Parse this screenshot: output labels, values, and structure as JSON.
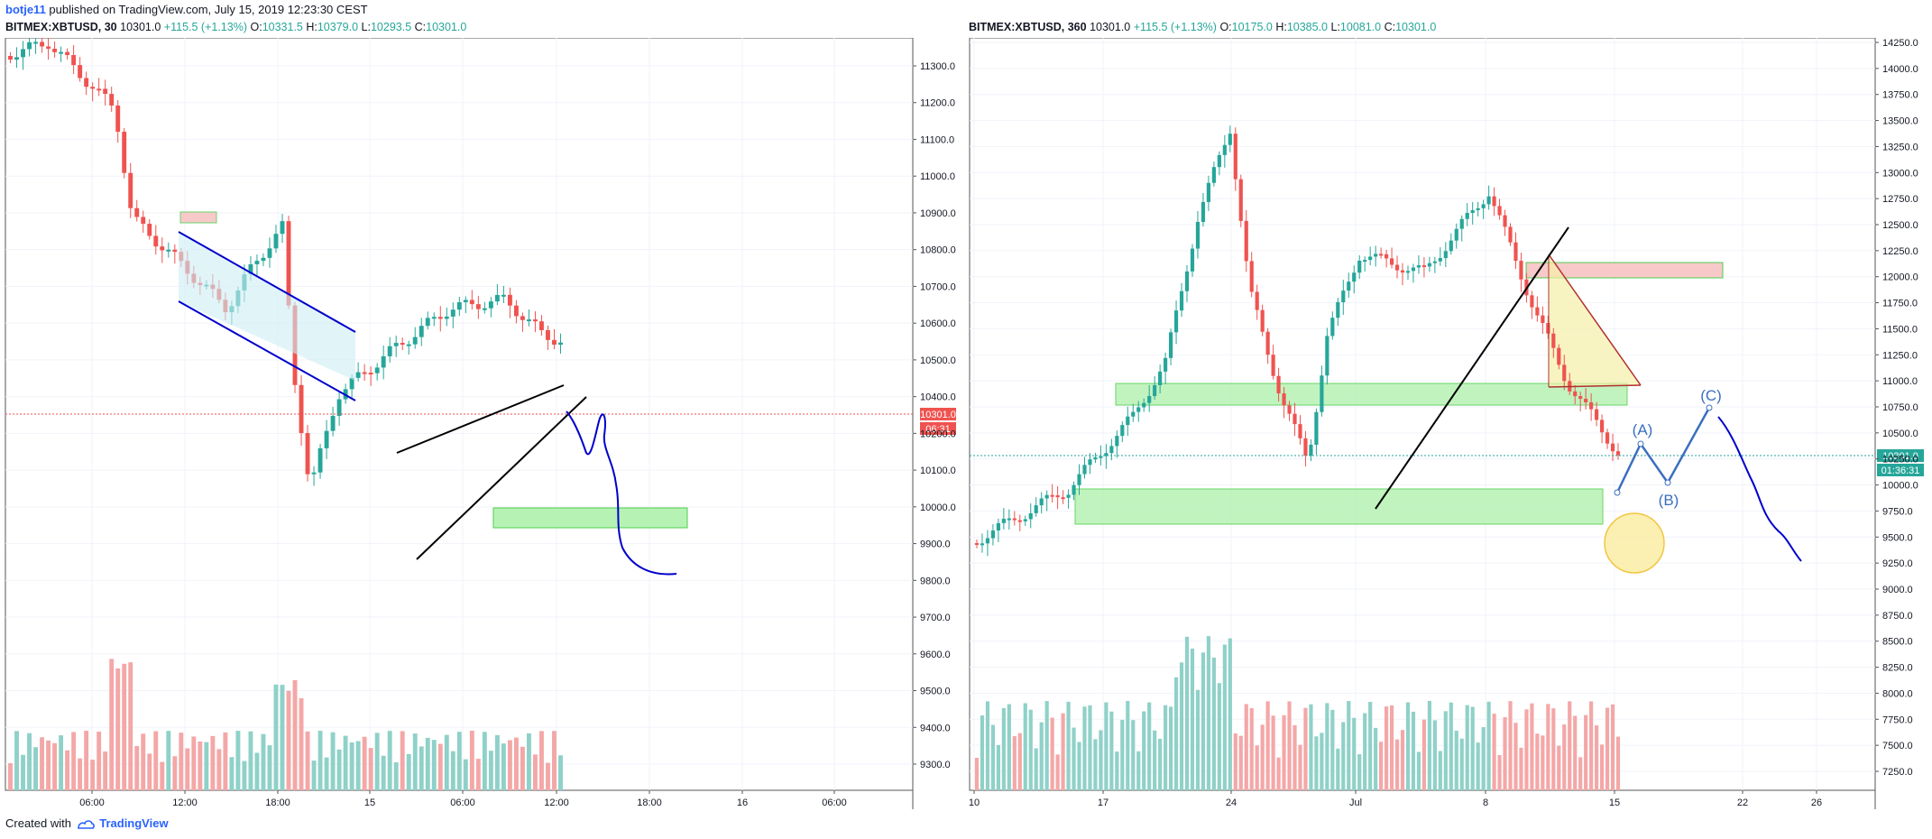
{
  "header": {
    "author": "botje11",
    "published_text": "published on TradingView.com, July 15, 2019 12:23:30 CEST"
  },
  "footer": {
    "created_with": "Created with",
    "brand": "TradingView"
  },
  "colors": {
    "up": "#26a69a",
    "down": "#ef5350",
    "up_volume": "#8fd1c8",
    "down_volume": "#f4a7a7",
    "drawing_blue": "#0000cc",
    "zone_green": "#b7f2b5",
    "zone_red": "#f7c9c9",
    "price_tag": "#ef5350",
    "price_tag_right": "#26a69a"
  },
  "left_chart": {
    "symbol": "BITMEX:XBTUSD, 30",
    "last": "10301.0",
    "change": "+115.5 (+1.13%)",
    "o_label": "O:",
    "o": "10331.5",
    "h_label": "H:",
    "h": "10379.0",
    "l_label": "L:",
    "l": "10293.5",
    "c_label": "C:",
    "c": "10301.0",
    "price_axis": [
      "11300.0",
      "11200.0",
      "11100.0",
      "11000.0",
      "10900.0",
      "10800.0",
      "10700.0",
      "10600.0",
      "10500.0",
      "10400.0",
      "10200.0",
      "10100.0",
      "10000.0",
      "9900.0",
      "9800.0",
      "9700.0",
      "9600.0",
      "9500.0",
      "9400.0",
      "9300.0"
    ],
    "time_axis": [
      "06:00",
      "12:00",
      "18:00",
      "15",
      "06:00",
      "12:00",
      "18:00",
      "16",
      "06:00"
    ],
    "price_tag": "10301.0",
    "countdown": "06:31"
  },
  "right_chart": {
    "symbol": "BITMEX:XBTUSD, 360",
    "last": "10301.0",
    "change": "+115.5 (+1.13%)",
    "o_label": "O:",
    "o": "10175.0",
    "h_label": "H:",
    "h": "10385.0",
    "l_label": "L:",
    "l": "10081.0",
    "c_label": "C:",
    "c": "10301.0",
    "price_axis": [
      "14250.0",
      "14000.0",
      "13750.0",
      "13500.0",
      "13250.0",
      "13000.0",
      "12750.0",
      "12500.0",
      "12250.0",
      "12000.0",
      "11750.0",
      "11500.0",
      "11250.0",
      "11000.0",
      "10750.0",
      "10500.0",
      "10250.0",
      "10000.0",
      "9750.0",
      "9500.0",
      "9250.0",
      "9000.0",
      "8750.0",
      "8500.0",
      "8250.0",
      "8000.0",
      "7750.0",
      "7500.0",
      "7250.0"
    ],
    "time_axis": [
      "10",
      "17",
      "24",
      "Jul",
      "8",
      "15",
      "22",
      "26"
    ],
    "price_tag": "10301.0",
    "countdown": "01:36:31",
    "wave_labels": [
      "(A)",
      "(B)",
      "(C)"
    ]
  }
}
